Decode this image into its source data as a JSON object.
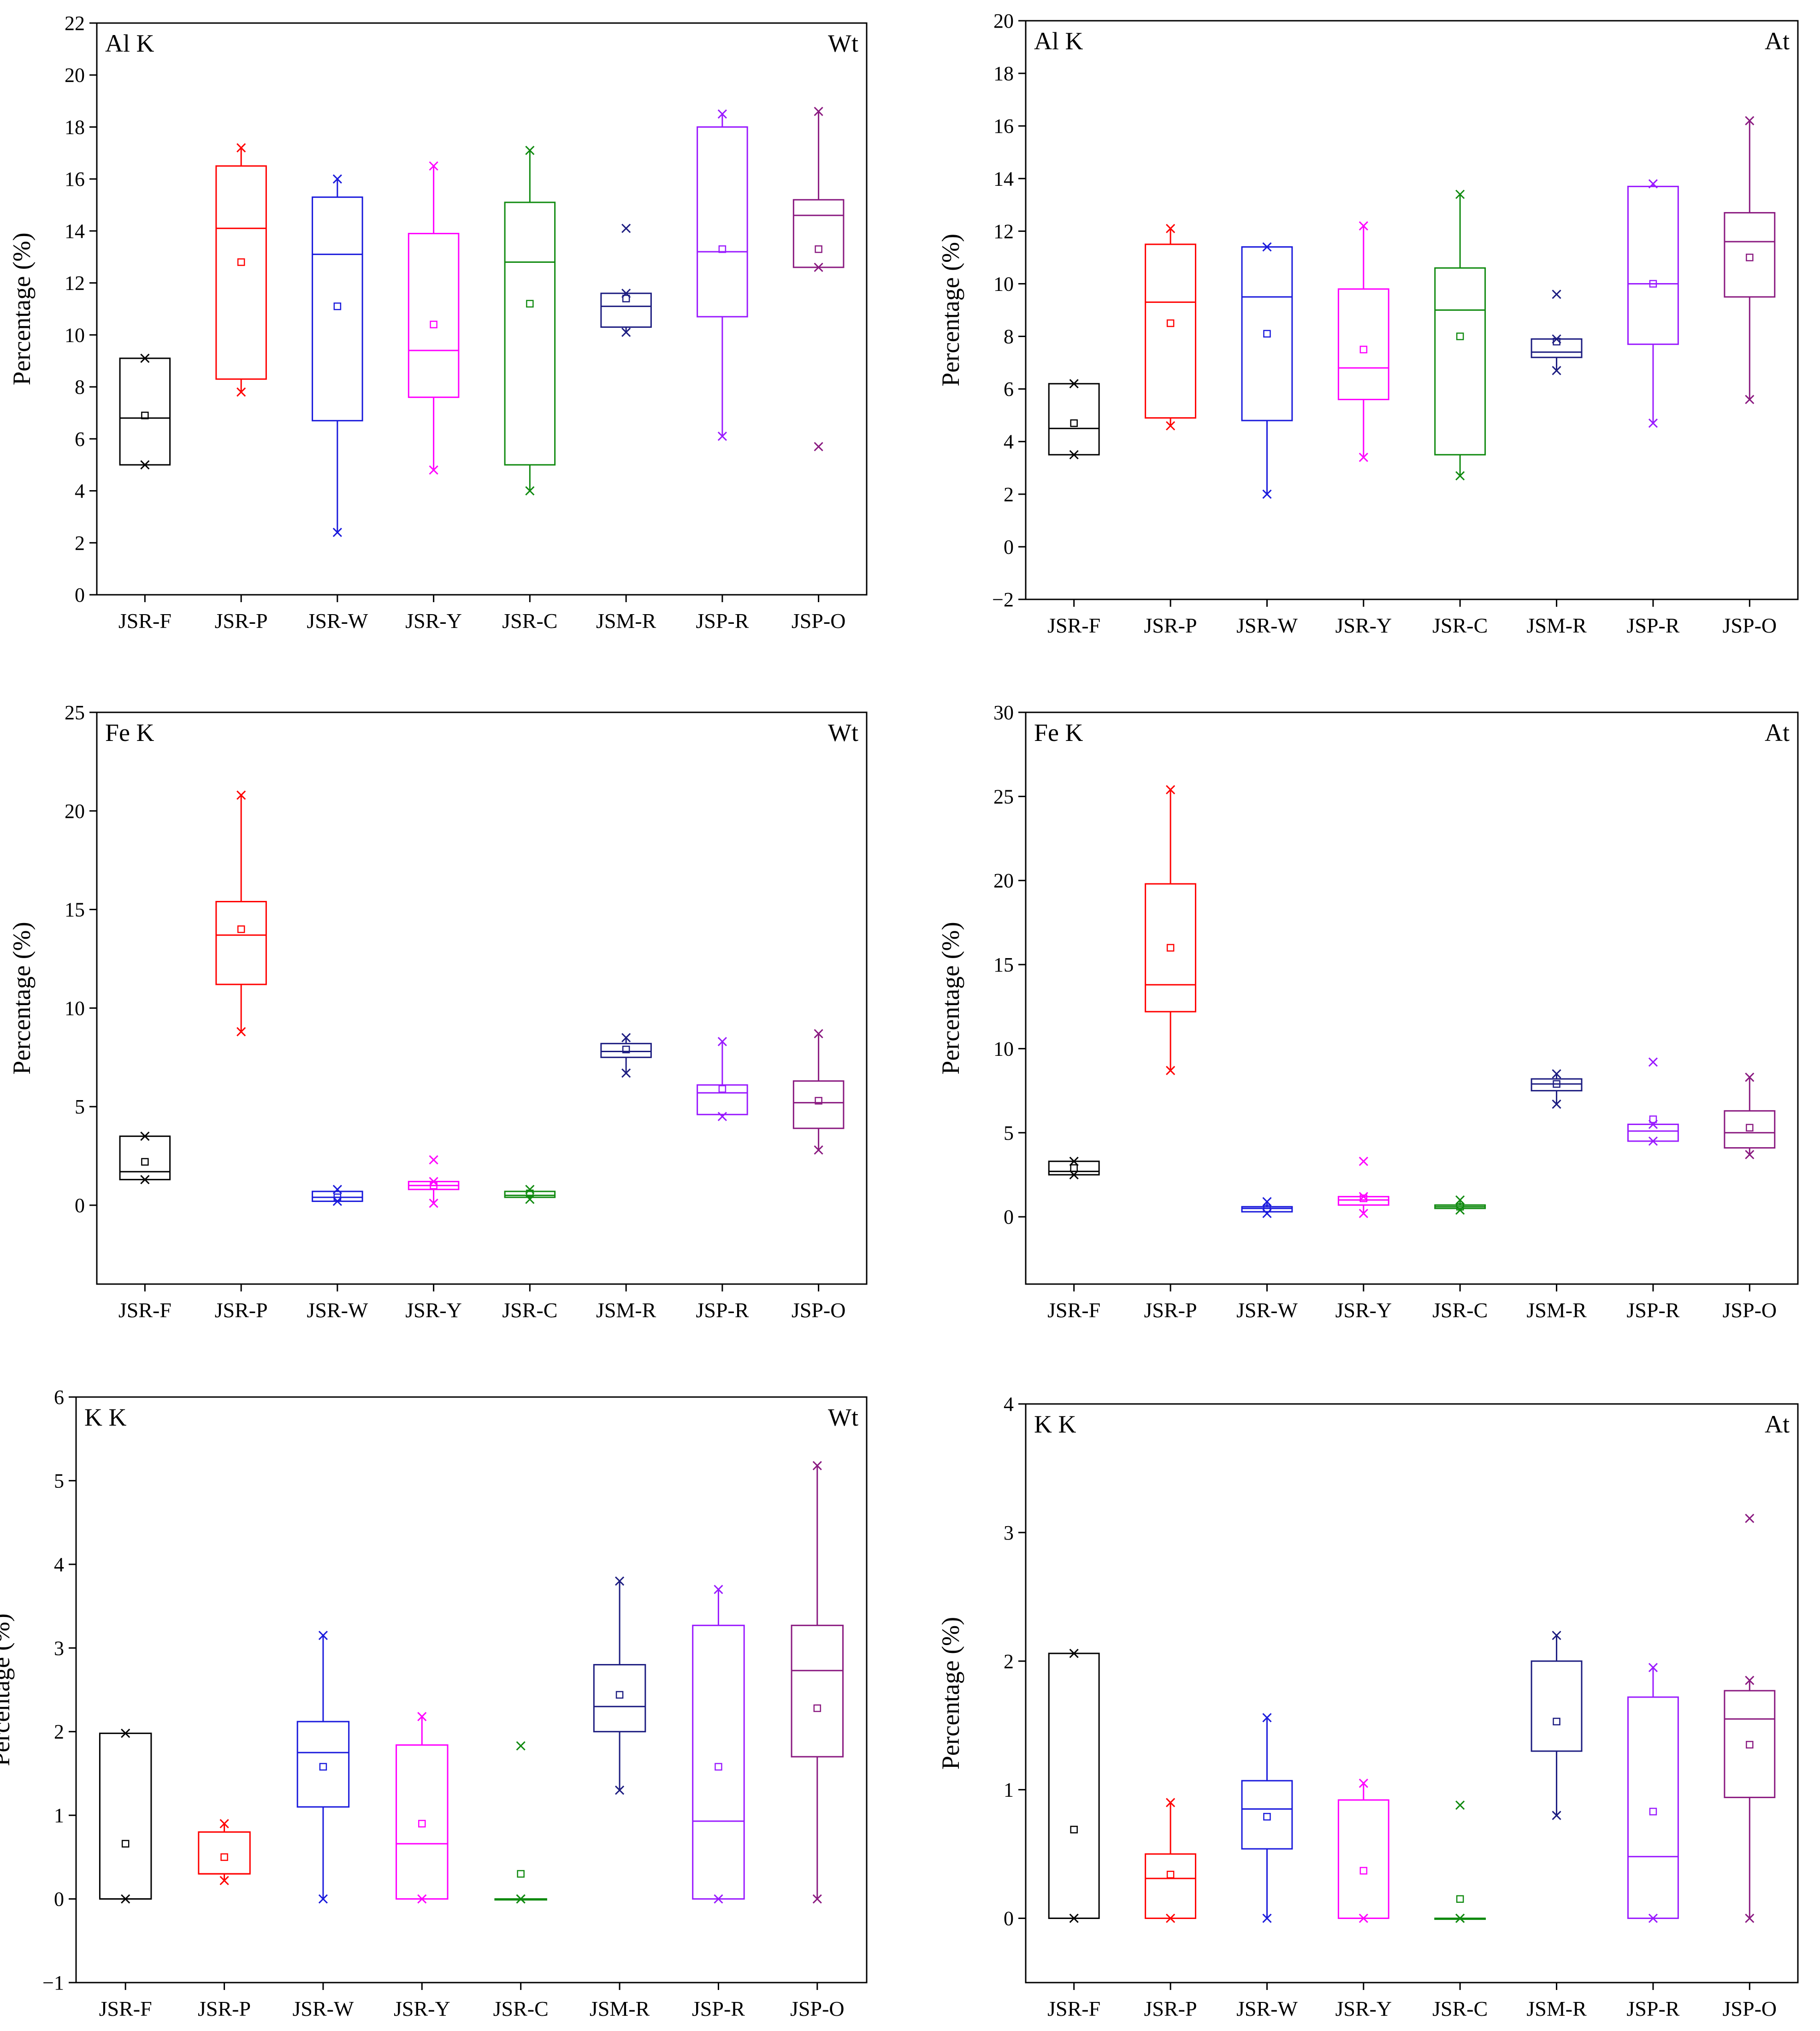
{
  "figure": {
    "categories": [
      "JSR-F",
      "JSR-P",
      "JSR-W",
      "JSR-Y",
      "JSR-C",
      "JSM-R",
      "JSP-R",
      "JSP-O"
    ],
    "colors": {
      "JSR-F": "#000000",
      "JSR-P": "#ff0000",
      "JSR-W": "#1a1adc",
      "JSR-Y": "#ff00ff",
      "JSR-C": "#108a10",
      "JSM-R": "#1c1c80",
      "JSP-R": "#9a1aff",
      "JSP-O": "#8a1a80"
    }
  },
  "chart_data": [
    {
      "type": "box",
      "element": "Al K",
      "basis": "Wt",
      "ylabel": "Percentage (%)",
      "ylim": [
        0,
        22
      ],
      "yticks": [
        0,
        2,
        4,
        6,
        8,
        10,
        12,
        14,
        16,
        18,
        20,
        22
      ],
      "series": [
        {
          "category": "JSR-F",
          "q1": 5.0,
          "median": 6.8,
          "q3": 9.1,
          "mean": 6.9,
          "min": 5.0,
          "max": 9.1,
          "outliers": []
        },
        {
          "category": "JSR-P",
          "q1": 8.3,
          "median": 14.1,
          "q3": 16.5,
          "mean": 12.8,
          "min": 7.8,
          "max": 17.2,
          "outliers": []
        },
        {
          "category": "JSR-W",
          "q1": 6.7,
          "median": 13.1,
          "q3": 15.3,
          "mean": 11.1,
          "min": 2.4,
          "max": 16.0,
          "outliers": []
        },
        {
          "category": "JSR-Y",
          "q1": 7.6,
          "median": 9.4,
          "q3": 13.9,
          "mean": 10.4,
          "min": 4.8,
          "max": 16.5,
          "outliers": []
        },
        {
          "category": "JSR-C",
          "q1": 5.0,
          "median": 12.8,
          "q3": 15.1,
          "mean": 11.2,
          "min": 4.0,
          "max": 17.1,
          "outliers": []
        },
        {
          "category": "JSM-R",
          "q1": 10.3,
          "median": 11.1,
          "q3": 11.6,
          "mean": 11.4,
          "min": 10.1,
          "max": 11.6,
          "outliers": [
            14.1
          ]
        },
        {
          "category": "JSP-R",
          "q1": 10.7,
          "median": 13.2,
          "q3": 18.0,
          "mean": 13.3,
          "min": 6.1,
          "max": 18.5,
          "outliers": []
        },
        {
          "category": "JSP-O",
          "q1": 12.6,
          "median": 14.6,
          "q3": 15.2,
          "mean": 13.3,
          "min": 12.6,
          "max": 18.6,
          "outliers": [
            5.7
          ]
        }
      ]
    },
    {
      "type": "box",
      "element": "Al K",
      "basis": "At",
      "ylabel": "Percentage (%)",
      "ylim": [
        -2,
        20
      ],
      "yticks": [
        -2,
        0,
        2,
        4,
        6,
        8,
        10,
        12,
        14,
        16,
        18,
        20
      ],
      "series": [
        {
          "category": "JSR-F",
          "q1": 3.5,
          "median": 4.5,
          "q3": 6.2,
          "mean": 4.7,
          "min": 3.5,
          "max": 6.2,
          "outliers": []
        },
        {
          "category": "JSR-P",
          "q1": 4.9,
          "median": 9.3,
          "q3": 11.5,
          "mean": 8.5,
          "min": 4.6,
          "max": 12.1,
          "outliers": []
        },
        {
          "category": "JSR-W",
          "q1": 4.8,
          "median": 9.5,
          "q3": 11.4,
          "mean": 8.1,
          "min": 2.0,
          "max": 11.4,
          "outliers": []
        },
        {
          "category": "JSR-Y",
          "q1": 5.6,
          "median": 6.8,
          "q3": 9.8,
          "mean": 7.5,
          "min": 3.4,
          "max": 12.2,
          "outliers": []
        },
        {
          "category": "JSR-C",
          "q1": 3.5,
          "median": 9.0,
          "q3": 10.6,
          "mean": 8.0,
          "min": 2.7,
          "max": 13.4,
          "outliers": []
        },
        {
          "category": "JSM-R",
          "q1": 7.2,
          "median": 7.4,
          "q3": 7.9,
          "mean": 7.8,
          "min": 6.7,
          "max": 7.9,
          "outliers": [
            9.6
          ]
        },
        {
          "category": "JSP-R",
          "q1": 7.7,
          "median": 10.0,
          "q3": 13.7,
          "mean": 10.0,
          "min": 4.7,
          "max": 13.8,
          "outliers": []
        },
        {
          "category": "JSP-O",
          "q1": 9.5,
          "median": 11.6,
          "q3": 12.7,
          "mean": 11.0,
          "min": 5.6,
          "max": 16.2,
          "outliers": []
        }
      ]
    },
    {
      "type": "box",
      "element": "Fe K",
      "basis": "Wt",
      "ylabel": "Percentage (%)",
      "ylim": [
        -4,
        25
      ],
      "yticks": [
        0,
        5,
        10,
        15,
        20,
        25
      ],
      "series": [
        {
          "category": "JSR-F",
          "q1": 1.3,
          "median": 1.7,
          "q3": 3.5,
          "mean": 2.2,
          "min": 1.3,
          "max": 3.5,
          "outliers": []
        },
        {
          "category": "JSR-P",
          "q1": 11.2,
          "median": 13.7,
          "q3": 15.4,
          "mean": 14.0,
          "min": 8.8,
          "max": 20.8,
          "outliers": []
        },
        {
          "category": "JSR-W",
          "q1": 0.2,
          "median": 0.4,
          "q3": 0.7,
          "mean": 0.4,
          "min": 0.2,
          "max": 0.8,
          "outliers": []
        },
        {
          "category": "JSR-Y",
          "q1": 0.8,
          "median": 1.0,
          "q3": 1.2,
          "mean": 1.0,
          "min": 0.1,
          "max": 1.2,
          "outliers": [
            2.3
          ]
        },
        {
          "category": "JSR-C",
          "q1": 0.4,
          "median": 0.5,
          "q3": 0.7,
          "mean": 0.6,
          "min": 0.3,
          "max": 0.8,
          "outliers": []
        },
        {
          "category": "JSM-R",
          "q1": 7.5,
          "median": 7.8,
          "q3": 8.2,
          "mean": 7.9,
          "min": 6.7,
          "max": 8.5,
          "outliers": []
        },
        {
          "category": "JSP-R",
          "q1": 4.6,
          "median": 5.7,
          "q3": 6.1,
          "mean": 5.9,
          "min": 4.5,
          "max": 8.3,
          "outliers": []
        },
        {
          "category": "JSP-O",
          "q1": 3.9,
          "median": 5.2,
          "q3": 6.3,
          "mean": 5.3,
          "min": 2.8,
          "max": 8.7,
          "outliers": []
        }
      ]
    },
    {
      "type": "box",
      "element": "Fe K",
      "basis": "At",
      "ylabel": "Percentage (%)",
      "ylim": [
        -4,
        30
      ],
      "yticks": [
        0,
        5,
        10,
        15,
        20,
        25,
        30
      ],
      "series": [
        {
          "category": "JSR-F",
          "q1": 2.5,
          "median": 2.7,
          "q3": 3.3,
          "mean": 2.9,
          "min": 2.5,
          "max": 3.3,
          "outliers": []
        },
        {
          "category": "JSR-P",
          "q1": 12.2,
          "median": 13.8,
          "q3": 19.8,
          "mean": 16.0,
          "min": 8.7,
          "max": 25.4,
          "outliers": []
        },
        {
          "category": "JSR-W",
          "q1": 0.3,
          "median": 0.5,
          "q3": 0.6,
          "mean": 0.5,
          "min": 0.2,
          "max": 0.9,
          "outliers": []
        },
        {
          "category": "JSR-Y",
          "q1": 0.7,
          "median": 1.0,
          "q3": 1.2,
          "mean": 1.1,
          "min": 0.2,
          "max": 1.2,
          "outliers": [
            3.3
          ]
        },
        {
          "category": "JSR-C",
          "q1": 0.5,
          "median": 0.6,
          "q3": 0.7,
          "mean": 0.6,
          "min": 0.4,
          "max": 1.0,
          "outliers": []
        },
        {
          "category": "JSM-R",
          "q1": 7.5,
          "median": 7.9,
          "q3": 8.2,
          "mean": 7.9,
          "min": 6.7,
          "max": 8.5,
          "outliers": []
        },
        {
          "category": "JSP-R",
          "q1": 4.5,
          "median": 5.1,
          "q3": 5.5,
          "mean": 5.8,
          "min": 4.5,
          "max": 5.5,
          "outliers": [
            9.2
          ]
        },
        {
          "category": "JSP-O",
          "q1": 4.1,
          "median": 5.0,
          "q3": 6.3,
          "mean": 5.3,
          "min": 3.7,
          "max": 8.3,
          "outliers": []
        }
      ]
    },
    {
      "type": "box",
      "element": "K K",
      "basis": "Wt",
      "ylabel": "Percentage (%)",
      "ylim": [
        -1,
        6
      ],
      "yticks": [
        -1,
        0,
        1,
        2,
        3,
        4,
        5,
        6
      ],
      "series": [
        {
          "category": "JSR-F",
          "q1": 0.0,
          "median": 0.0,
          "q3": 1.98,
          "mean": 0.66,
          "min": 0.0,
          "max": 1.98,
          "outliers": []
        },
        {
          "category": "JSR-P",
          "q1": 0.3,
          "median": 0.3,
          "q3": 0.8,
          "mean": 0.5,
          "min": 0.22,
          "max": 0.9,
          "outliers": []
        },
        {
          "category": "JSR-W",
          "q1": 1.1,
          "median": 1.75,
          "q3": 2.12,
          "mean": 1.58,
          "min": 0.0,
          "max": 3.15,
          "outliers": []
        },
        {
          "category": "JSR-Y",
          "q1": 0.0,
          "median": 0.66,
          "q3": 1.84,
          "mean": 0.9,
          "min": 0.0,
          "max": 2.18,
          "outliers": []
        },
        {
          "category": "JSR-C",
          "q1": 0.0,
          "median": 0.0,
          "q3": 0.0,
          "mean": 0.3,
          "min": 0.0,
          "max": 0.0,
          "outliers": [
            1.83
          ]
        },
        {
          "category": "JSM-R",
          "q1": 2.0,
          "median": 2.3,
          "q3": 2.8,
          "mean": 2.44,
          "min": 1.3,
          "max": 3.8,
          "outliers": []
        },
        {
          "category": "JSP-R",
          "q1": 0.0,
          "median": 0.93,
          "q3": 3.27,
          "mean": 1.58,
          "min": 0.0,
          "max": 3.7,
          "outliers": []
        },
        {
          "category": "JSP-O",
          "q1": 1.7,
          "median": 2.73,
          "q3": 3.27,
          "mean": 2.28,
          "min": 0.0,
          "max": 5.18,
          "outliers": []
        }
      ]
    },
    {
      "type": "box",
      "element": "K K",
      "basis": "At",
      "ylabel": "Percentage (%)",
      "ylim": [
        -0.5,
        4
      ],
      "yticks": [
        0,
        1,
        2,
        3,
        4
      ],
      "series": [
        {
          "category": "JSR-F",
          "q1": 0.0,
          "median": 0.0,
          "q3": 2.06,
          "mean": 0.69,
          "min": 0.0,
          "max": 2.06,
          "outliers": []
        },
        {
          "category": "JSR-P",
          "q1": 0.0,
          "median": 0.31,
          "q3": 0.5,
          "mean": 0.34,
          "min": 0.0,
          "max": 0.9,
          "outliers": []
        },
        {
          "category": "JSR-W",
          "q1": 0.54,
          "median": 0.85,
          "q3": 1.07,
          "mean": 0.79,
          "min": 0.0,
          "max": 1.56,
          "outliers": []
        },
        {
          "category": "JSR-Y",
          "q1": 0.0,
          "median": 0.0,
          "q3": 0.92,
          "mean": 0.37,
          "min": 0.0,
          "max": 1.05,
          "outliers": []
        },
        {
          "category": "JSR-C",
          "q1": 0.0,
          "median": 0.0,
          "q3": 0.0,
          "mean": 0.15,
          "min": 0.0,
          "max": 0.0,
          "outliers": [
            0.88
          ]
        },
        {
          "category": "JSM-R",
          "q1": 1.3,
          "median": 1.3,
          "q3": 2.0,
          "mean": 1.53,
          "min": 0.8,
          "max": 2.2,
          "outliers": []
        },
        {
          "category": "JSP-R",
          "q1": 0.0,
          "median": 0.48,
          "q3": 1.72,
          "mean": 0.83,
          "min": 0.0,
          "max": 1.95,
          "outliers": []
        },
        {
          "category": "JSP-O",
          "q1": 0.94,
          "median": 1.55,
          "q3": 1.77,
          "mean": 1.35,
          "min": 0.0,
          "max": 1.85,
          "outliers": [
            3.11
          ]
        }
      ]
    }
  ]
}
